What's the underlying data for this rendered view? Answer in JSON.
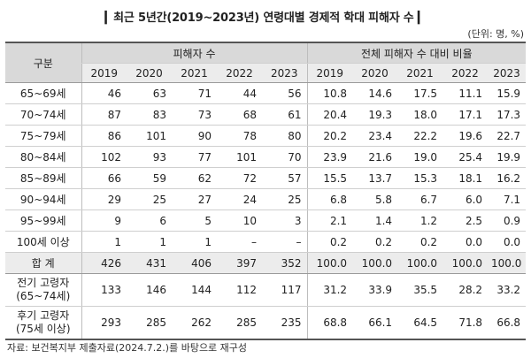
{
  "title": "▎최근 5년간(2019~2023년) 연령대별 경제적 학대 피해자 수 ▎",
  "unit": "(단위: 명, %)",
  "headers": {
    "category": "구분",
    "group1": "피해자 수",
    "group2": "전체 피해자 수 대비 비율",
    "years": [
      "2019",
      "2020",
      "2021",
      "2022",
      "2023"
    ]
  },
  "rows": [
    {
      "label": "65~69세",
      "counts": [
        "46",
        "63",
        "71",
        "44",
        "56"
      ],
      "ratios": [
        "10.8",
        "14.6",
        "17.5",
        "11.1",
        "15.9"
      ]
    },
    {
      "label": "70~74세",
      "counts": [
        "87",
        "83",
        "73",
        "68",
        "61"
      ],
      "ratios": [
        "20.4",
        "19.3",
        "18.0",
        "17.1",
        "17.3"
      ]
    },
    {
      "label": "75~79세",
      "counts": [
        "86",
        "101",
        "90",
        "78",
        "80"
      ],
      "ratios": [
        "20.2",
        "23.4",
        "22.2",
        "19.6",
        "22.7"
      ]
    },
    {
      "label": "80~84세",
      "counts": [
        "102",
        "93",
        "77",
        "101",
        "70"
      ],
      "ratios": [
        "23.9",
        "21.6",
        "19.0",
        "25.4",
        "19.9"
      ]
    },
    {
      "label": "85~89세",
      "counts": [
        "66",
        "59",
        "62",
        "72",
        "57"
      ],
      "ratios": [
        "15.5",
        "13.7",
        "15.3",
        "18.1",
        "16.2"
      ]
    },
    {
      "label": "90~94세",
      "counts": [
        "29",
        "25",
        "27",
        "24",
        "25"
      ],
      "ratios": [
        "6.8",
        "5.8",
        "6.7",
        "6.0",
        "7.1"
      ]
    },
    {
      "label": "95~99세",
      "counts": [
        "9",
        "6",
        "5",
        "10",
        "3"
      ],
      "ratios": [
        "2.1",
        "1.4",
        "1.2",
        "2.5",
        "0.9"
      ]
    },
    {
      "label": "100세 이상",
      "counts": [
        "1",
        "1",
        "1",
        "–",
        "–"
      ],
      "ratios": [
        "0.2",
        "0.2",
        "0.2",
        "0.0",
        "0.0"
      ]
    }
  ],
  "total": {
    "label": "합 계",
    "counts": [
      "426",
      "431",
      "406",
      "397",
      "352"
    ],
    "ratios": [
      "100.0",
      "100.0",
      "100.0",
      "100.0",
      "100.0"
    ]
  },
  "early": {
    "label1": "전기 고령자",
    "label2": "(65~74세)",
    "counts": [
      "133",
      "146",
      "144",
      "112",
      "117"
    ],
    "ratios": [
      "31.2",
      "33.9",
      "35.5",
      "28.2",
      "33.2"
    ]
  },
  "late": {
    "label1": "후기 고령자",
    "label2": "(75세 이상)",
    "counts": [
      "293",
      "285",
      "262",
      "285",
      "235"
    ],
    "ratios": [
      "68.8",
      "66.1",
      "64.5",
      "71.8",
      "66.8"
    ]
  },
  "source": "자료: 보건복지부 제출자료(2024.7.2.)를 바탕으로 재구성"
}
